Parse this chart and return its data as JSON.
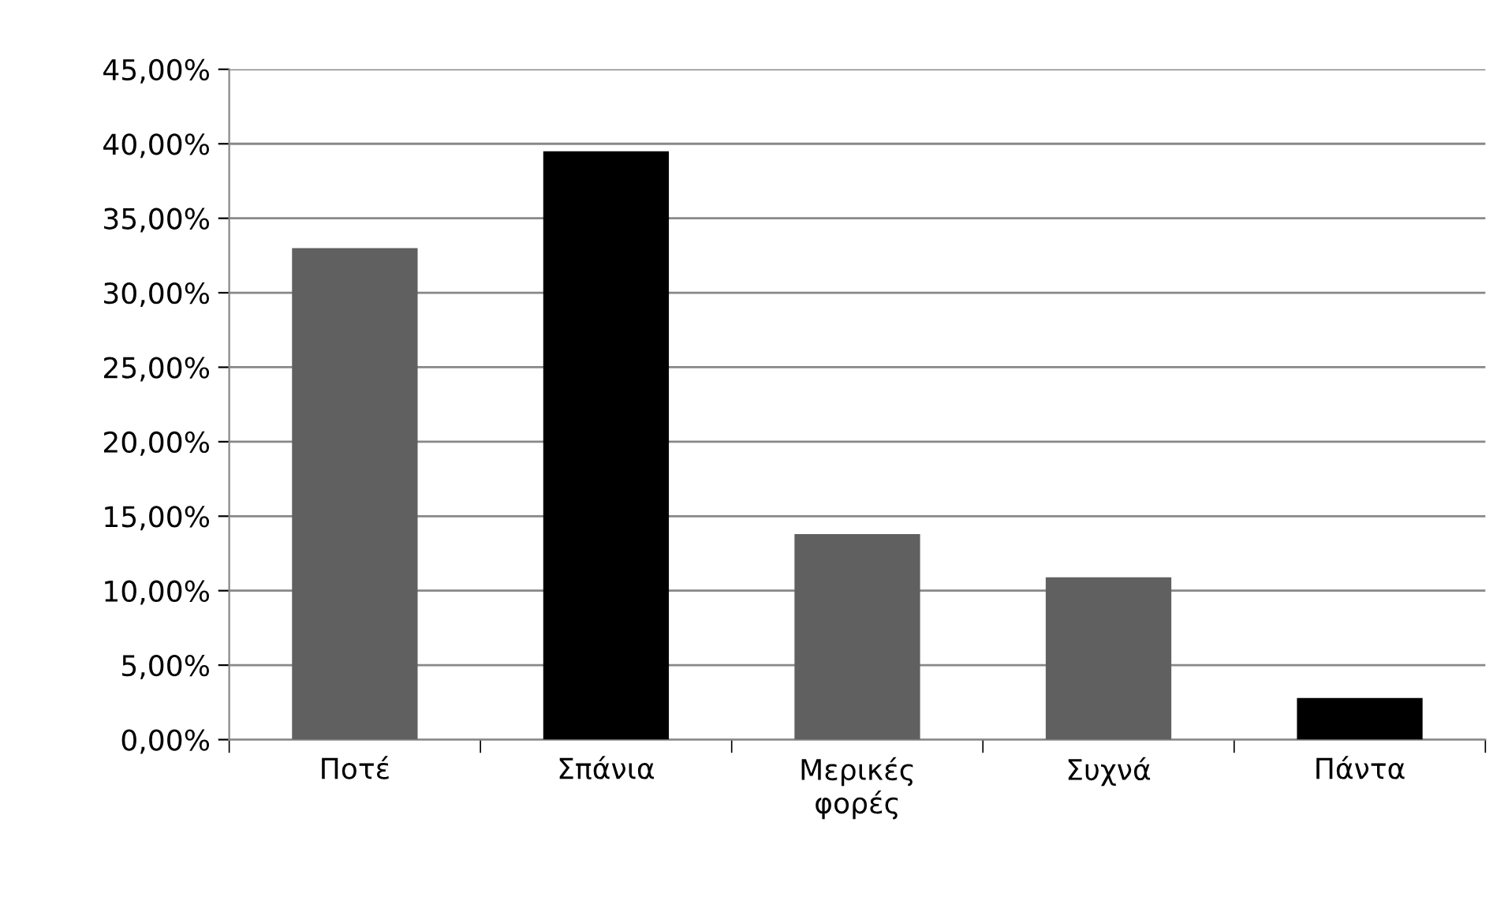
{
  "chart_data": {
    "type": "bar",
    "categories": [
      "Ποτέ",
      "Σπάνια",
      "Μερικές\nφορές",
      "Συχνά",
      "Πάντα"
    ],
    "values": [
      33.0,
      39.5,
      13.8,
      10.9,
      2.8
    ],
    "colors": [
      "#606060",
      "#000000",
      "#606060",
      "#606060",
      "#000000"
    ],
    "ylim": [
      0,
      45
    ],
    "yticks": [
      {
        "value": 0,
        "label": "0,00%"
      },
      {
        "value": 5,
        "label": "5,00%"
      },
      {
        "value": 10,
        "label": "10,00%"
      },
      {
        "value": 15,
        "label": "15,00%"
      },
      {
        "value": 20,
        "label": "20,00%"
      },
      {
        "value": 25,
        "label": "25,00%"
      },
      {
        "value": 30,
        "label": "30,00%"
      },
      {
        "value": 35,
        "label": "35,00%"
      },
      {
        "value": 40,
        "label": "40,00%"
      },
      {
        "value": 45,
        "label": "45,00%"
      }
    ],
    "grid": "y"
  }
}
